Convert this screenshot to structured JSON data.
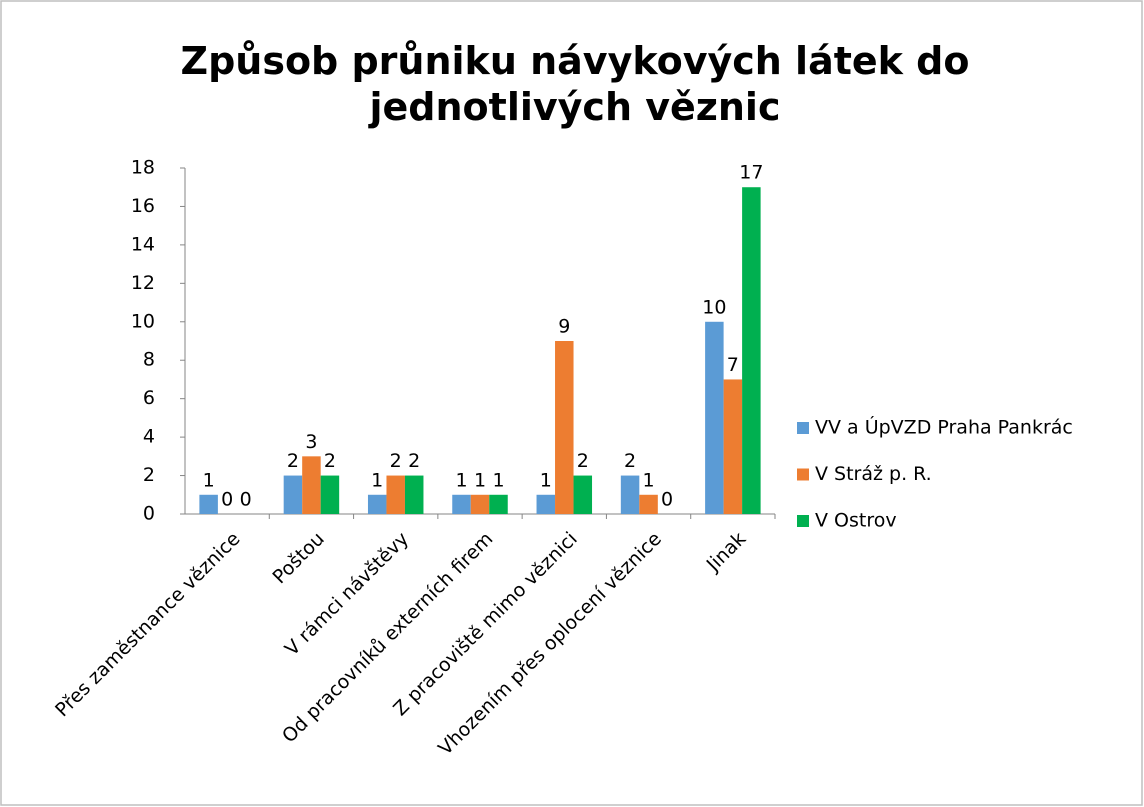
{
  "chart_data": {
    "type": "bar",
    "title": "Způsob průniku návykových látek do jednotlivých věznic",
    "categories": [
      "Přes zaměstnance věznice",
      "Poštou",
      "V rámci návštěvy",
      "Od pracovníků externích firem",
      "Z pracoviště mimo věznici",
      "Vhozením přes oplocení věznice",
      "Jinak"
    ],
    "series": [
      {
        "name": "VV a ÚpVZD Praha Pankrác",
        "color": "#5b9bd5",
        "values": [
          1,
          2,
          1,
          1,
          1,
          2,
          10
        ]
      },
      {
        "name": "V Stráž p. R.",
        "color": "#ed7d31",
        "values": [
          0,
          3,
          2,
          1,
          9,
          1,
          7
        ]
      },
      {
        "name": "V Ostrov",
        "color": "#00b050",
        "values": [
          0,
          2,
          2,
          1,
          2,
          0,
          17
        ]
      }
    ],
    "ylim": [
      0,
      18
    ],
    "yticks": [
      0,
      2,
      4,
      6,
      8,
      10,
      12,
      14,
      16,
      18
    ],
    "grid": false,
    "legend": "right"
  }
}
